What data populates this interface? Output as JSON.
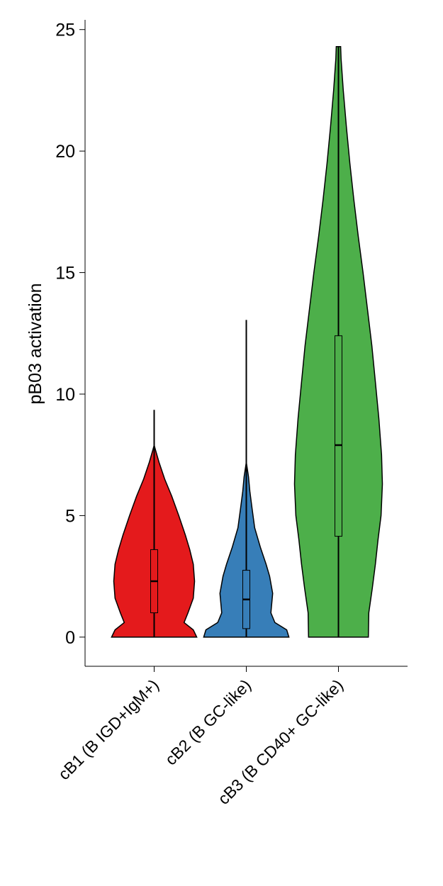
{
  "chart_data": {
    "type": "violin",
    "y_label": "pB03 activation",
    "categories": [
      "cB1 (B IGD+IgM+)",
      "cB2 (B GC-like)",
      "cB3 (B CD40+ GC-like)"
    ],
    "violins": [
      {
        "color": "#e41a1c",
        "whisker": [
          0,
          9.35
        ],
        "box": [
          1.0,
          2.3,
          3.6
        ],
        "density_y": [
          0,
          0.3,
          0.6,
          1,
          1.6,
          2.3,
          3,
          3.6,
          4.2,
          5,
          5.8,
          6.5,
          7.2,
          7.7,
          7.9
        ],
        "density": [
          0.97,
          0.89,
          0.68,
          0.77,
          0.89,
          0.92,
          0.89,
          0.81,
          0.71,
          0.56,
          0.4,
          0.24,
          0.11,
          0.03,
          0
        ]
      },
      {
        "color": "#377eb8",
        "whisker": [
          0,
          13.05
        ],
        "box": [
          0.35,
          1.55,
          2.75
        ],
        "density_y": [
          0,
          0.3,
          0.6,
          1,
          1.8,
          2.5,
          3,
          3.7,
          4.5,
          5.3,
          6,
          6.6,
          7.2
        ],
        "density": [
          0.97,
          0.92,
          0.65,
          0.56,
          0.6,
          0.53,
          0.45,
          0.32,
          0.19,
          0.13,
          0.08,
          0.05,
          0
        ]
      },
      {
        "color": "#4daf4a",
        "whisker": [
          0,
          24.3
        ],
        "box": [
          4.15,
          7.9,
          12.4
        ],
        "density_y": [
          0,
          1,
          2,
          3,
          4,
          5,
          6.3,
          7.5,
          9,
          10.5,
          12,
          13.5,
          15,
          16.5,
          18,
          19.5,
          21,
          22.5,
          23.8,
          24.3
        ],
        "density": [
          0.68,
          0.69,
          0.77,
          0.84,
          0.9,
          0.97,
          1,
          0.98,
          0.92,
          0.84,
          0.76,
          0.66,
          0.56,
          0.45,
          0.35,
          0.26,
          0.18,
          0.11,
          0.06,
          0.05
        ]
      }
    ],
    "ylim": [
      -1.2,
      25.4
    ],
    "yticks": [
      0,
      5,
      10,
      15,
      20,
      25
    ]
  }
}
